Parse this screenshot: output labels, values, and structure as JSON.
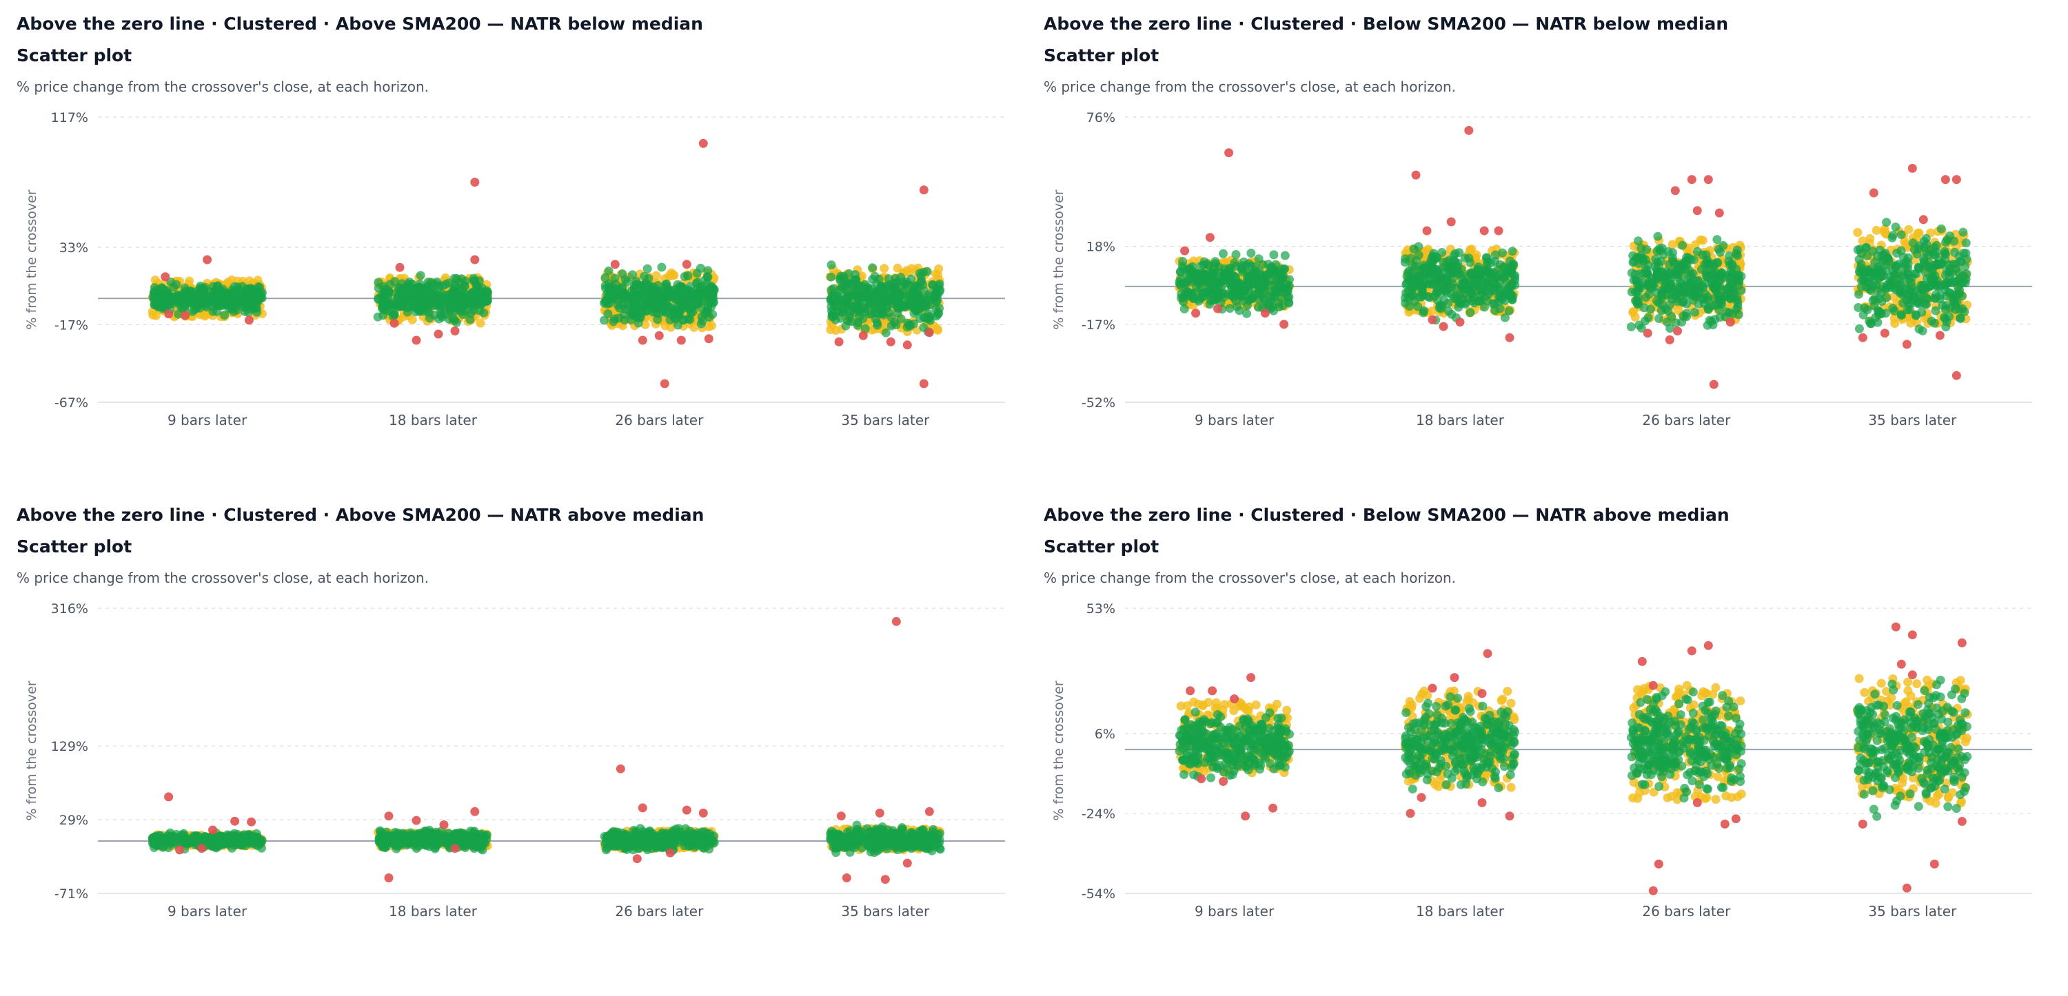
{
  "colors": {
    "green": "#16a34a",
    "yellow": "#f2bd1d",
    "red": "#e05252",
    "grid": "#d9dde3",
    "zero_line": "#9aa3ad"
  },
  "panels": [
    {
      "title": "Above the zero line · Clustered · Above SMA200 — NATR below median",
      "subtitle": "Scatter plot",
      "caption": "% price change from the crossover's close, at each horizon.",
      "chart_data": {
        "type": "scatter",
        "ylabel": "% from the crossover",
        "ylim": [
          -67,
          117
        ],
        "yticks": [
          117,
          33,
          -17,
          -67
        ],
        "ytick_labels": [
          "117%",
          "33%",
          "-17%",
          "-67%"
        ],
        "categories": [
          "9 bars later",
          "18 bars later",
          "26 bars later",
          "35 bars later"
        ],
        "green_band": [
          [
            -5,
            5
          ],
          [
            -7,
            7
          ],
          [
            -9,
            9
          ],
          [
            -10,
            10
          ]
        ],
        "yellow_band": [
          [
            -12,
            12
          ],
          [
            -16,
            14
          ],
          [
            -19,
            17
          ],
          [
            -22,
            20
          ]
        ],
        "outliers": [
          [
            [
              0.5,
              25
            ],
            [
              0.12,
              14
            ],
            [
              0.88,
              -14
            ],
            [
              0.15,
              -10
            ],
            [
              0.3,
              -11
            ]
          ],
          [
            [
              0.88,
              75
            ],
            [
              0.88,
              25
            ],
            [
              0.2,
              20
            ],
            [
              0.35,
              -27
            ],
            [
              0.55,
              -23
            ],
            [
              0.7,
              -21
            ],
            [
              0.15,
              -16
            ]
          ],
          [
            [
              0.9,
              100
            ],
            [
              0.1,
              22
            ],
            [
              0.75,
              22
            ],
            [
              0.55,
              -55
            ],
            [
              0.35,
              -27
            ],
            [
              0.5,
              -24
            ],
            [
              0.95,
              -26
            ],
            [
              0.7,
              -27
            ]
          ],
          [
            [
              0.85,
              70
            ],
            [
              0.08,
              -28
            ],
            [
              0.3,
              -24
            ],
            [
              0.55,
              -28
            ],
            [
              0.7,
              -30
            ],
            [
              0.9,
              -22
            ],
            [
              0.85,
              -55
            ]
          ]
        ]
      }
    },
    {
      "title": "Above the zero line · Clustered · Below SMA200 — NATR below median",
      "subtitle": "Scatter plot",
      "caption": "% price change from the crossover's close, at each horizon.",
      "chart_data": {
        "type": "scatter",
        "ylabel": "% from the crossover",
        "ylim": [
          -52,
          76
        ],
        "yticks": [
          76,
          18,
          -17,
          -52
        ],
        "ytick_labels": [
          "76%",
          "18%",
          "-17%",
          "-52%"
        ],
        "categories": [
          "9 bars later",
          "18 bars later",
          "26 bars later",
          "35 bars later"
        ],
        "green_band": [
          [
            -5,
            8
          ],
          [
            -6,
            10
          ],
          [
            -8,
            12
          ],
          [
            -9,
            14
          ]
        ],
        "yellow_band": [
          [
            -9,
            12
          ],
          [
            -12,
            17
          ],
          [
            -15,
            21
          ],
          [
            -17,
            26
          ]
        ],
        "outliers": [
          [
            [
              0.45,
              60
            ],
            [
              0.05,
              16
            ],
            [
              0.28,
              22
            ],
            [
              0.15,
              -12
            ],
            [
              0.78,
              -12
            ],
            [
              0.95,
              -17
            ],
            [
              0.35,
              -10
            ]
          ],
          [
            [
              0.58,
              70
            ],
            [
              0.1,
              50
            ],
            [
              0.42,
              29
            ],
            [
              0.2,
              25
            ],
            [
              0.72,
              25
            ],
            [
              0.85,
              25
            ],
            [
              0.35,
              -18
            ],
            [
              0.5,
              -16
            ],
            [
              0.25,
              -15
            ],
            [
              0.95,
              -23
            ]
          ],
          [
            [
              0.55,
              48
            ],
            [
              0.7,
              48
            ],
            [
              0.4,
              43
            ],
            [
              0.6,
              34
            ],
            [
              0.8,
              33
            ],
            [
              0.15,
              -21
            ],
            [
              0.35,
              -24
            ],
            [
              0.9,
              -16
            ],
            [
              0.75,
              -44
            ],
            [
              0.42,
              -20
            ]
          ],
          [
            [
              0.5,
              53
            ],
            [
              0.8,
              48
            ],
            [
              0.9,
              48
            ],
            [
              0.15,
              42
            ],
            [
              0.6,
              30
            ],
            [
              0.05,
              -23
            ],
            [
              0.25,
              -21
            ],
            [
              0.45,
              -26
            ],
            [
              0.75,
              -22
            ],
            [
              0.9,
              -40
            ]
          ]
        ]
      }
    },
    {
      "title": "Above the zero line · Clustered · Above SMA200 — NATR above median",
      "subtitle": "Scatter plot",
      "caption": "% price change from the crossover's close, at each horizon.",
      "chart_data": {
        "type": "scatter",
        "ylabel": "% from the crossover",
        "ylim": [
          -71,
          316
        ],
        "yticks": [
          316,
          129,
          29,
          -71
        ],
        "ytick_labels": [
          "316%",
          "129%",
          "29%",
          "-71%"
        ],
        "categories": [
          "9 bars later",
          "18 bars later",
          "26 bars later",
          "35 bars later"
        ],
        "green_band": [
          [
            -4,
            6
          ],
          [
            -5,
            8
          ],
          [
            -6,
            9
          ],
          [
            -7,
            10
          ]
        ],
        "yellow_band": [
          [
            -7,
            9
          ],
          [
            -8,
            12
          ],
          [
            -10,
            14
          ],
          [
            -12,
            17
          ]
        ],
        "outliers": [
          [
            [
              0.15,
              60
            ],
            [
              0.75,
              27
            ],
            [
              0.9,
              26
            ],
            [
              0.25,
              -12
            ],
            [
              0.45,
              -10
            ],
            [
              0.55,
              15
            ]
          ],
          [
            [
              0.1,
              34
            ],
            [
              0.88,
              40
            ],
            [
              0.35,
              28
            ],
            [
              0.6,
              22
            ],
            [
              0.1,
              -50
            ],
            [
              0.7,
              -10
            ]
          ],
          [
            [
              0.15,
              98
            ],
            [
              0.35,
              45
            ],
            [
              0.75,
              42
            ],
            [
              0.9,
              38
            ],
            [
              0.3,
              -24
            ],
            [
              0.6,
              -16
            ]
          ],
          [
            [
              0.6,
              298
            ],
            [
              0.1,
              34
            ],
            [
              0.45,
              38
            ],
            [
              0.9,
              40
            ],
            [
              0.15,
              -50
            ],
            [
              0.5,
              -52
            ],
            [
              0.7,
              -30
            ]
          ]
        ]
      }
    },
    {
      "title": "Above the zero line · Clustered · Below SMA200 — NATR above median",
      "subtitle": "Scatter plot",
      "caption": "% price change from the crossover's close, at each horizon.",
      "chart_data": {
        "type": "scatter",
        "ylabel": "% from the crossover",
        "ylim": [
          -54,
          53
        ],
        "yticks": [
          53,
          6,
          -24,
          -54
        ],
        "ytick_labels": [
          "53%",
          "6%",
          "-24%",
          "-54%"
        ],
        "categories": [
          "9 bars later",
          "18 bars later",
          "26 bars later",
          "35 bars later"
        ],
        "green_band": [
          [
            -4,
            8
          ],
          [
            -6,
            10
          ],
          [
            -8,
            11
          ],
          [
            -10,
            14
          ]
        ],
        "yellow_band": [
          [
            -9,
            18
          ],
          [
            -15,
            22
          ],
          [
            -19,
            24
          ],
          [
            -21,
            27
          ]
        ],
        "outliers": [
          [
            [
              0.65,
              27
            ],
            [
              0.1,
              22
            ],
            [
              0.3,
              22
            ],
            [
              0.5,
              19
            ],
            [
              0.2,
              -11
            ],
            [
              0.4,
              -12
            ],
            [
              0.85,
              -22
            ],
            [
              0.6,
              -25
            ]
          ],
          [
            [
              0.75,
              36
            ],
            [
              0.45,
              27
            ],
            [
              0.25,
              23
            ],
            [
              0.7,
              21
            ],
            [
              0.05,
              -24
            ],
            [
              0.15,
              -18
            ],
            [
              0.7,
              -20
            ],
            [
              0.95,
              -25
            ]
          ],
          [
            [
              0.7,
              39
            ],
            [
              0.1,
              33
            ],
            [
              0.55,
              37
            ],
            [
              0.2,
              24
            ],
            [
              0.25,
              -43
            ],
            [
              0.2,
              -53
            ],
            [
              0.6,
              -20
            ],
            [
              0.85,
              -28
            ],
            [
              0.95,
              -26
            ]
          ],
          [
            [
              0.35,
              46
            ],
            [
              0.5,
              43
            ],
            [
              0.95,
              40
            ],
            [
              0.4,
              32
            ],
            [
              0.5,
              28
            ],
            [
              0.05,
              -28
            ],
            [
              0.45,
              -52
            ],
            [
              0.7,
              -43
            ],
            [
              0.95,
              -27
            ]
          ]
        ]
      }
    }
  ]
}
